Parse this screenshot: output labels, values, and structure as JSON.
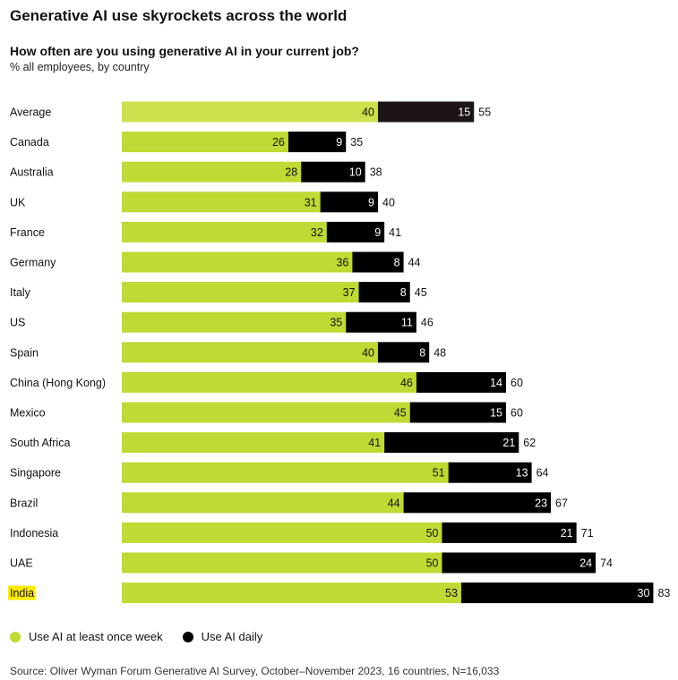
{
  "header": {
    "title": "Generative AI use skyrockets across the world",
    "subtitle": "How often are you using generative AI in your current job?",
    "subsubtitle": "% all employees, by country"
  },
  "legend": {
    "weekly_label": "Use AI at least once week",
    "daily_label": "Use AI daily"
  },
  "source": "Source: Oliver Wyman Forum Generative AI Survey, October–November 2023, 16 countries, N=16,033",
  "colors": {
    "weekly": "#c0d934",
    "average_weekly": "#cfe04f",
    "daily": "#000000",
    "average_daily": "#1c1414",
    "highlight": "#ffea00"
  },
  "chart_data": {
    "type": "bar",
    "orientation": "horizontal",
    "stacked": true,
    "categories": [
      "Average",
      "Canada",
      "Australia",
      "UK",
      "France",
      "Germany",
      "Italy",
      "US",
      "Spain",
      "China (Hong Kong)",
      "Mexico",
      "South Africa",
      "Singapore",
      "Brazil",
      "Indonesia",
      "UAE",
      "India"
    ],
    "series": [
      {
        "name": "Use AI at least once week",
        "values": [
          40,
          26,
          28,
          31,
          32,
          36,
          37,
          35,
          40,
          46,
          45,
          41,
          51,
          44,
          50,
          50,
          53
        ]
      },
      {
        "name": "Use AI daily",
        "values": [
          15,
          9,
          10,
          9,
          9,
          8,
          8,
          11,
          8,
          14,
          15,
          21,
          13,
          23,
          21,
          24,
          30
        ]
      }
    ],
    "totals": [
      55,
      35,
      38,
      40,
      41,
      44,
      45,
      46,
      48,
      60,
      60,
      62,
      64,
      67,
      71,
      74,
      83
    ],
    "highlighted_category": "India",
    "xlim": [
      0,
      83
    ],
    "grid": false
  }
}
